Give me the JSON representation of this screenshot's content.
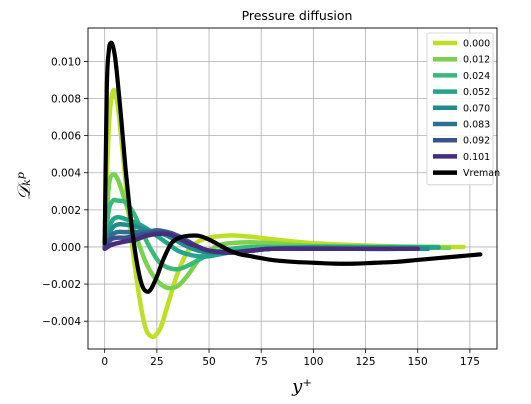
{
  "chart_data": {
    "type": "line",
    "title": "Pressure diffusion",
    "xlabel": "y⁺",
    "ylabel": "𝒟ₖᵖ",
    "xlim": [
      -8,
      188
    ],
    "ylim": [
      -0.0055,
      0.0118
    ],
    "grid": true,
    "legend_position": "top-right",
    "x_ticks": [
      0,
      25,
      50,
      75,
      100,
      125,
      150,
      175
    ],
    "y_ticks": [
      -0.004,
      -0.002,
      0.0,
      0.002,
      0.004,
      0.006,
      0.008,
      0.01
    ],
    "x_tick_labels": [
      "0",
      "25",
      "50",
      "75",
      "100",
      "125",
      "150",
      "175"
    ],
    "y_tick_labels": [
      "−0.004",
      "−0.002",
      "0.000",
      "0.002",
      "0.004",
      "0.006",
      "0.008",
      "0.010"
    ],
    "series": [
      {
        "name": "0.000",
        "color": "#bddf26",
        "x": [
          0,
          2,
          4,
          6,
          8,
          10,
          12,
          15,
          18,
          20,
          22,
          24,
          27,
          30,
          35,
          40,
          45,
          50,
          55,
          60,
          65,
          70,
          80,
          90,
          100,
          120,
          140,
          160,
          172
        ],
        "y": [
          0.0002,
          0.0065,
          0.0084,
          0.0078,
          0.0058,
          0.0035,
          0.0012,
          -0.0015,
          -0.0036,
          -0.0045,
          -0.0048,
          -0.0048,
          -0.0043,
          -0.0032,
          -0.0014,
          -0.0002,
          0.0003,
          0.0005,
          0.00058,
          0.00062,
          0.0006,
          0.00055,
          0.00042,
          0.0003,
          0.0002,
          0.0001,
          3e-05,
          0.0,
          0.0
        ]
      },
      {
        "name": "0.012",
        "color": "#7ad151",
        "x": [
          0,
          2,
          4,
          6,
          8,
          10,
          12,
          15,
          20,
          25,
          30,
          35,
          40,
          45,
          50,
          55,
          60,
          70,
          80,
          90,
          100,
          120,
          140,
          165
        ],
        "y": [
          0.0001,
          0.0033,
          0.0039,
          0.0037,
          0.0031,
          0.0024,
          0.0017,
          0.0006,
          -0.0009,
          -0.0018,
          -0.0022,
          -0.0021,
          -0.0015,
          -0.0007,
          -0.0002,
          0.0001,
          0.0002,
          0.00025,
          0.0002,
          0.00012,
          6e-05,
          0.0,
          -4e-05,
          -5e-05
        ]
      },
      {
        "name": "0.024",
        "color": "#3ab97a",
        "x": [
          0,
          2,
          4,
          6,
          10,
          14,
          18,
          22,
          26,
          30,
          35,
          40,
          45,
          50,
          55,
          60,
          70,
          80,
          90,
          100,
          120,
          140,
          160
        ],
        "y": [
          0.0001,
          0.002,
          0.0025,
          0.0025,
          0.0024,
          0.0018,
          0.0008,
          -0.0001,
          -0.0008,
          -0.0011,
          -0.0012,
          -0.001,
          -0.0007,
          -0.0004,
          -0.0002,
          -0.0001,
          0.0,
          0.0,
          0.0,
          0.0,
          0.0,
          0.0,
          0.0
        ]
      },
      {
        "name": "0.052",
        "color": "#24a48b",
        "x": [
          0,
          3,
          6,
          10,
          15,
          20,
          25,
          30,
          35,
          40,
          45,
          50,
          60,
          70,
          80,
          100,
          120,
          140,
          160
        ],
        "y": [
          0.0001,
          0.0013,
          0.0016,
          0.0015,
          0.0013,
          0.001,
          0.0006,
          0.0002,
          -0.0002,
          -0.0004,
          -0.0005,
          -0.0005,
          -0.0003,
          -0.0002,
          -0.0001,
          0.0,
          0.0,
          -2e-05,
          -3e-05
        ]
      },
      {
        "name": "0.070",
        "color": "#228c8d",
        "x": [
          0,
          3,
          6,
          10,
          15,
          20,
          25,
          30,
          35,
          40,
          45,
          50,
          60,
          70,
          80,
          100,
          120,
          140,
          155
        ],
        "y": [
          0.0,
          0.0009,
          0.0012,
          0.0012,
          0.0011,
          0.0009,
          0.0008,
          0.0006,
          0.0003,
          0.0,
          -0.0002,
          -0.0003,
          -0.0003,
          -0.0002,
          -0.0001,
          -5e-05,
          -0.0001,
          -0.0001,
          -0.0001
        ]
      },
      {
        "name": "0.083",
        "color": "#2c6f8e",
        "x": [
          0,
          3,
          6,
          10,
          15,
          20,
          25,
          30,
          35,
          40,
          45,
          50,
          60,
          70,
          80,
          100,
          120,
          150
        ],
        "y": [
          0.0,
          0.0006,
          0.0008,
          0.0008,
          0.0008,
          0.0008,
          0.0009,
          0.0008,
          0.0006,
          0.0003,
          0.0,
          -0.0002,
          -0.0003,
          -0.0002,
          -0.0001,
          -8e-05,
          -0.0001,
          -0.0001
        ]
      },
      {
        "name": "0.092",
        "color": "#3b518b",
        "x": [
          0,
          3,
          6,
          10,
          15,
          20,
          25,
          30,
          35,
          40,
          45,
          50,
          60,
          70,
          80,
          100,
          120,
          150
        ],
        "y": [
          0.0,
          0.0004,
          0.0005,
          0.0005,
          0.0006,
          0.0007,
          0.0008,
          0.0008,
          0.0006,
          0.0003,
          0.0,
          -0.0002,
          -0.0003,
          -0.0002,
          -0.0001,
          -0.0001,
          -0.0001,
          -0.0001
        ]
      },
      {
        "name": "0.101",
        "color": "#472d7b",
        "x": [
          0,
          3,
          6,
          10,
          15,
          20,
          25,
          30,
          35,
          40,
          45,
          50,
          60,
          70,
          80,
          100,
          120,
          150
        ],
        "y": [
          -0.0001,
          0.0001,
          0.0002,
          0.0003,
          0.0004,
          0.0006,
          0.0007,
          0.0007,
          0.0005,
          0.0002,
          0.0,
          -0.0002,
          -0.0003,
          -0.0002,
          -0.0001,
          -0.0001,
          -0.0001,
          -0.0001
        ]
      },
      {
        "name": "Vreman",
        "color": "#000000",
        "x": [
          0,
          1,
          2,
          3,
          4,
          5,
          6,
          8,
          10,
          12,
          14,
          16,
          18,
          20,
          22,
          25,
          28,
          32,
          36,
          40,
          45,
          50,
          55,
          60,
          65,
          70,
          80,
          90,
          100,
          110,
          120,
          130,
          140,
          150,
          160,
          170,
          180
        ],
        "y": [
          0.0002,
          0.0085,
          0.0106,
          0.011,
          0.0108,
          0.0102,
          0.0092,
          0.0068,
          0.0042,
          0.002,
          0.0002,
          -0.0012,
          -0.0021,
          -0.0024,
          -0.0023,
          -0.0016,
          -0.0007,
          0.0002,
          0.0005,
          0.0006,
          0.0006,
          0.0004,
          0.0001,
          -0.0002,
          -0.0004,
          -0.0005,
          -0.0007,
          -0.0008,
          -0.00085,
          -0.0009,
          -0.0009,
          -0.00085,
          -0.0008,
          -0.0007,
          -0.0006,
          -0.0005,
          -0.0004
        ]
      }
    ]
  }
}
